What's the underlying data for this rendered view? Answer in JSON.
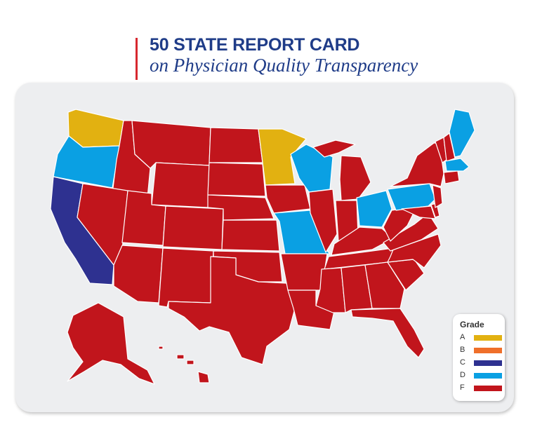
{
  "title": "50 STATE REPORT CARD",
  "subtitle": "on Physician Quality Transparency",
  "legend": {
    "title": "Grade",
    "items": [
      {
        "grade": "A",
        "color": "#e2b111"
      },
      {
        "grade": "B",
        "color": "#ef6f2a"
      },
      {
        "grade": "C",
        "color": "#2e3190"
      },
      {
        "grade": "D",
        "color": "#0aa0e3"
      },
      {
        "grade": "F",
        "color": "#c1151c"
      }
    ]
  },
  "grades": {
    "WA": "A",
    "MN": "A",
    "CA": "C",
    "OR": "D",
    "WI": "D",
    "OH": "D",
    "PA": "D",
    "MO": "D",
    "ME": "D",
    "MA": "D",
    "default": "F"
  }
}
